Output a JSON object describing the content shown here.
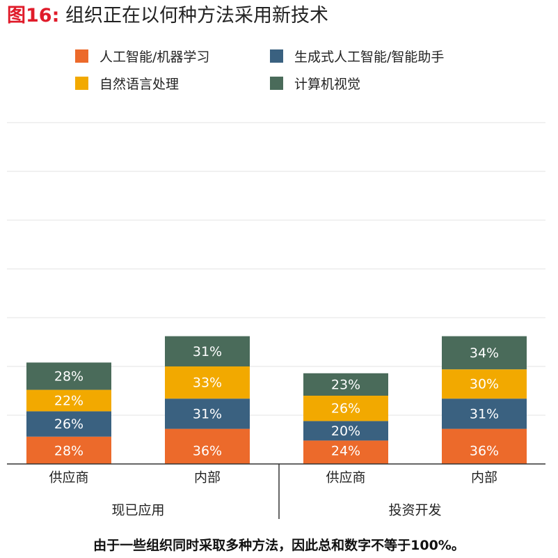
{
  "title_prefix": "图16:",
  "title_text": " 组织正在以何种方法采用新技术",
  "footnote": "由于一些组织同时采取多种方法，因此总和数字不等于100%。",
  "chart_data": {
    "type": "bar",
    "stacked": true,
    "title": "组织正在以何种方法采用新技术",
    "categories": [
      "供应商",
      "内部",
      "供应商",
      "内部"
    ],
    "groups": [
      {
        "label": "现已应用",
        "categories": [
          0,
          1
        ]
      },
      {
        "label": "投资开发",
        "categories": [
          2,
          3
        ]
      }
    ],
    "series": [
      {
        "name": "人工智能/机器学习",
        "color": "#ec6a2b",
        "values": [
          28,
          36,
          24,
          36
        ]
      },
      {
        "name": "生成式人工智能/智能助手",
        "color": "#3a6180",
        "values": [
          26,
          31,
          20,
          31
        ]
      },
      {
        "name": "自然语言处理",
        "color": "#f2a900",
        "values": [
          22,
          33,
          26,
          30
        ]
      },
      {
        "name": "计算机视觉",
        "color": "#4a6b5a",
        "values": [
          28,
          31,
          23,
          34
        ]
      }
    ],
    "value_labels": [
      [
        "28%",
        "36%",
        "24%",
        "36%"
      ],
      [
        "26%",
        "31%",
        "20%",
        "31%"
      ],
      [
        "22%",
        "33%",
        "26%",
        "30%"
      ],
      [
        "28%",
        "31%",
        "23%",
        "34%"
      ]
    ],
    "ylim": [
      0,
      140
    ],
    "grid": true,
    "legend_position": "top"
  }
}
